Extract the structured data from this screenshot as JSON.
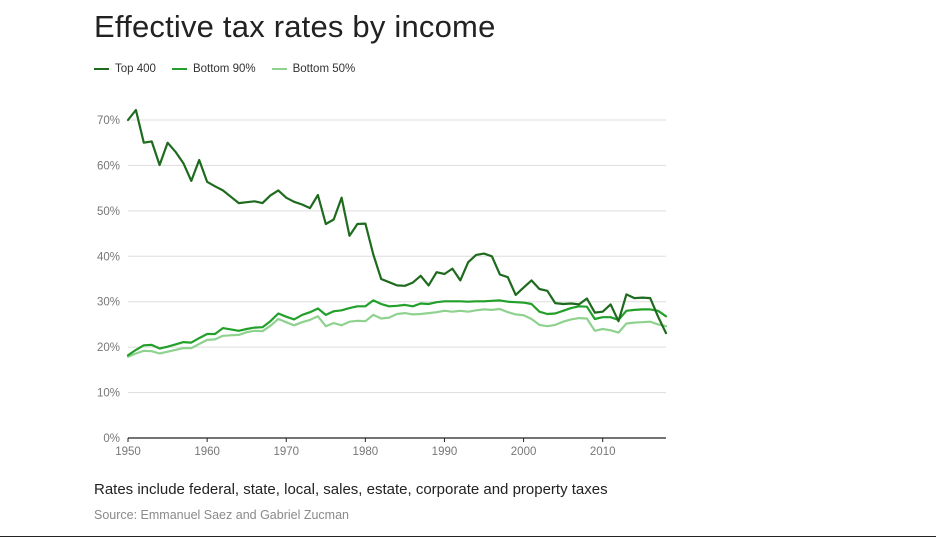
{
  "colors": {
    "top400": "#1e6b1e",
    "bottom90": "#22a02a",
    "bottom50": "#8fd28f",
    "grid": "#dddddd",
    "axis": "#222222",
    "tick_text": "#777777"
  },
  "chart_data": {
    "type": "line",
    "title": "Effective tax rates by income",
    "xlabel": "",
    "ylabel": "",
    "xlim": [
      1950,
      2018
    ],
    "ylim": [
      0,
      70
    ],
    "y_ticks": [
      0,
      10,
      20,
      30,
      40,
      50,
      60,
      70
    ],
    "y_tick_labels": [
      "0%",
      "10%",
      "20%",
      "30%",
      "40%",
      "50%",
      "60%",
      "70%"
    ],
    "x_ticks": [
      1950,
      1960,
      1970,
      1980,
      1990,
      2000,
      2010
    ],
    "x_tick_labels": [
      "1950",
      "1960",
      "1970",
      "1980",
      "1990",
      "2000",
      "2010"
    ],
    "grid": true,
    "legend_position": "top-left",
    "years": [
      1950,
      1951,
      1952,
      1953,
      1954,
      1955,
      1956,
      1957,
      1958,
      1959,
      1960,
      1961,
      1962,
      1963,
      1964,
      1965,
      1966,
      1967,
      1968,
      1969,
      1970,
      1971,
      1972,
      1973,
      1974,
      1975,
      1976,
      1977,
      1978,
      1979,
      1980,
      1981,
      1982,
      1983,
      1984,
      1985,
      1986,
      1987,
      1988,
      1989,
      1990,
      1991,
      1992,
      1993,
      1994,
      1995,
      1996,
      1997,
      1998,
      1999,
      2000,
      2001,
      2002,
      2003,
      2004,
      2005,
      2006,
      2007,
      2008,
      2009,
      2010,
      2011,
      2012,
      2013,
      2014,
      2015,
      2016,
      2017,
      2018
    ],
    "series": [
      {
        "name": "Top 400",
        "color_key": "top400",
        "values": [
          70,
          72.2,
          65,
          65.3,
          60.1,
          65,
          63,
          60.5,
          56.6,
          61.2,
          56.4,
          55.4,
          54.5,
          53.1,
          51.7,
          51.9,
          52.1,
          51.7,
          53.4,
          54.5,
          52.9,
          52,
          51.4,
          50.6,
          53.5,
          47.1,
          48.1,
          52.9,
          44.5,
          47.1,
          47.2,
          40.4,
          35,
          34.3,
          33.6,
          33.5,
          34.2,
          35.7,
          33.6,
          36.5,
          36.1,
          37.3,
          34.7,
          38.7,
          40.3,
          40.6,
          40,
          36,
          35.4,
          31.5,
          33.1,
          34.7,
          32.8,
          32.4,
          29.7,
          29.5,
          29.6,
          29.4,
          30.7,
          27.6,
          27.8,
          29.4,
          25.7,
          31.6,
          30.8,
          30.9,
          30.8,
          26.7,
          23.1
        ]
      },
      {
        "name": "Bottom 90%",
        "color_key": "bottom90",
        "values": [
          18.2,
          19.4,
          20.4,
          20.5,
          19.7,
          20.1,
          20.6,
          21.1,
          21,
          22,
          22.9,
          22.9,
          24.2,
          23.9,
          23.6,
          24,
          24.3,
          24.4,
          25.7,
          27.4,
          26.7,
          26.1,
          27.1,
          27.7,
          28.5,
          27.1,
          27.9,
          28.1,
          28.6,
          29,
          29,
          30.3,
          29.5,
          29,
          29.1,
          29.3,
          29,
          29.6,
          29.5,
          29.9,
          30.1,
          30.1,
          30.1,
          30,
          30.1,
          30.1,
          30.2,
          30.3,
          30,
          29.9,
          29.8,
          29.5,
          27.8,
          27.3,
          27.4,
          28,
          28.6,
          29,
          28.9,
          26.2,
          26.6,
          26.6,
          26,
          28,
          28.2,
          28.3,
          28.3,
          28,
          26.8
        ]
      },
      {
        "name": "Bottom 50%",
        "color_key": "bottom50",
        "values": [
          17.9,
          18.6,
          19.2,
          19.1,
          18.6,
          19,
          19.4,
          19.8,
          19.8,
          20.7,
          21.6,
          21.7,
          22.5,
          22.6,
          22.7,
          23.3,
          23.6,
          23.5,
          24.7,
          26.2,
          25.5,
          24.8,
          25.5,
          26,
          26.8,
          24.6,
          25.3,
          24.8,
          25.6,
          25.8,
          25.7,
          27.1,
          26.3,
          26.5,
          27.3,
          27.5,
          27.2,
          27.3,
          27.5,
          27.7,
          28,
          27.8,
          28,
          27.8,
          28.1,
          28.3,
          28.2,
          28.4,
          27.7,
          27.2,
          27,
          26.2,
          24.9,
          24.6,
          24.9,
          25.6,
          26.1,
          26.4,
          26.3,
          23.6,
          24,
          23.7,
          23.2,
          25.2,
          25.4,
          25.5,
          25.6,
          25,
          24.6
        ]
      }
    ]
  },
  "note": "Rates include federal, state, local, sales, estate, corporate and property taxes",
  "source": "Source: Emmanuel Saez and Gabriel Zucman"
}
